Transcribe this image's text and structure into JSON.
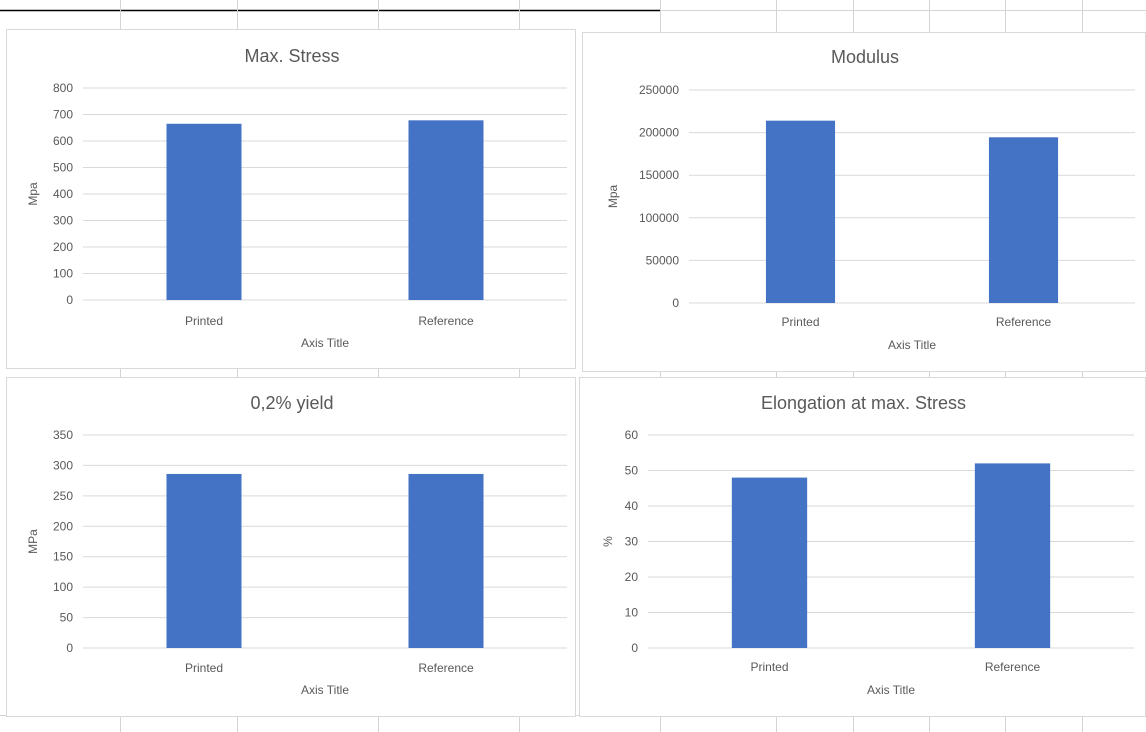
{
  "colors": {
    "bar": "#4472C4",
    "gridline": "#d9d9d9",
    "text": "#595959",
    "cell_border": "#d4d4d4"
  },
  "chart_data": [
    {
      "type": "bar",
      "title": "Max. Stress",
      "categories": [
        "Printed",
        "Reference"
      ],
      "values": [
        665,
        678
      ],
      "ylabel": "Mpa",
      "xlabel": "Axis Title",
      "ylim": [
        0,
        800
      ],
      "yticks": [
        "0",
        "100",
        "200",
        "300",
        "400",
        "500",
        "600",
        "700",
        "800"
      ],
      "grid": true
    },
    {
      "type": "bar",
      "title": "Modulus",
      "categories": [
        "Printed",
        "Reference"
      ],
      "values": [
        214000,
        194500
      ],
      "ylabel": "Mpa",
      "xlabel": "Axis Title",
      "ylim": [
        0,
        250000
      ],
      "yticks": [
        "0",
        "50000",
        "100000",
        "150000",
        "200000",
        "250000"
      ],
      "grid": true
    },
    {
      "type": "bar",
      "title": "0,2% yield",
      "categories": [
        "Printed",
        "Reference"
      ],
      "values": [
        286,
        286
      ],
      "ylabel": "MPa",
      "xlabel": "Axis Title",
      "ylim": [
        0,
        350
      ],
      "yticks": [
        "0",
        "50",
        "100",
        "150",
        "200",
        "250",
        "300",
        "350"
      ],
      "grid": true
    },
    {
      "type": "bar",
      "title": "Elongation at max. Stress",
      "categories": [
        "Printed",
        "Reference"
      ],
      "values": [
        48,
        52
      ],
      "ylabel": "%",
      "xlabel": "Axis Title",
      "ylim": [
        0,
        60
      ],
      "yticks": [
        "0",
        "10",
        "20",
        "30",
        "40",
        "50",
        "60"
      ],
      "grid": true
    }
  ]
}
